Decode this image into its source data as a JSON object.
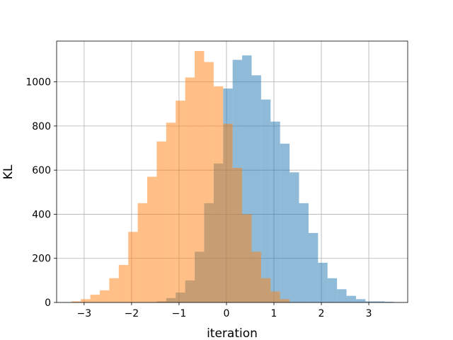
{
  "chart_data": {
    "type": "bar",
    "title": "",
    "xlabel": "iteration",
    "ylabel": "KL",
    "xlim": [
      -3.58,
      3.82
    ],
    "ylim": [
      0,
      1185
    ],
    "xticks": [
      -3,
      -2,
      -1,
      0,
      1,
      2,
      3
    ],
    "xtick_labels": [
      "−3",
      "−2",
      "−1",
      "0",
      "1",
      "2",
      "3"
    ],
    "yticks": [
      0,
      200,
      400,
      600,
      800,
      1000
    ],
    "ytick_labels": [
      "0",
      "200",
      "400",
      "600",
      "800",
      "1000"
    ],
    "grid": true,
    "legend": "none",
    "series": [
      {
        "color": "#1f77b4",
        "opacity": 0.5,
        "bin_edges": [
          -1.47,
          -1.27,
          -1.07,
          -0.87,
          -0.67,
          -0.47,
          -0.27,
          -0.07,
          0.13,
          0.33,
          0.53,
          0.73,
          0.93,
          1.13,
          1.33,
          1.53,
          1.73,
          1.93,
          2.13,
          2.33,
          2.53,
          2.73,
          2.93,
          3.13,
          3.33,
          3.53
        ],
        "values": [
          5,
          20,
          45,
          100,
          230,
          450,
          630,
          970,
          1100,
          1120,
          1030,
          920,
          820,
          720,
          590,
          450,
          315,
          180,
          110,
          60,
          30,
          15,
          5,
          5,
          3
        ]
      },
      {
        "color": "#ff7f0e",
        "opacity": 0.5,
        "bin_edges": [
          -3.27,
          -3.07,
          -2.87,
          -2.67,
          -2.47,
          -2.27,
          -2.07,
          -1.87,
          -1.67,
          -1.47,
          -1.27,
          -1.07,
          -0.87,
          -0.67,
          -0.47,
          -0.27,
          -0.07,
          0.13,
          0.33,
          0.53,
          0.73,
          0.93,
          1.13,
          1.33
        ],
        "values": [
          5,
          15,
          35,
          55,
          110,
          170,
          320,
          450,
          570,
          730,
          815,
          915,
          1020,
          1140,
          1090,
          980,
          810,
          610,
          400,
          230,
          110,
          50,
          15
        ]
      }
    ]
  }
}
